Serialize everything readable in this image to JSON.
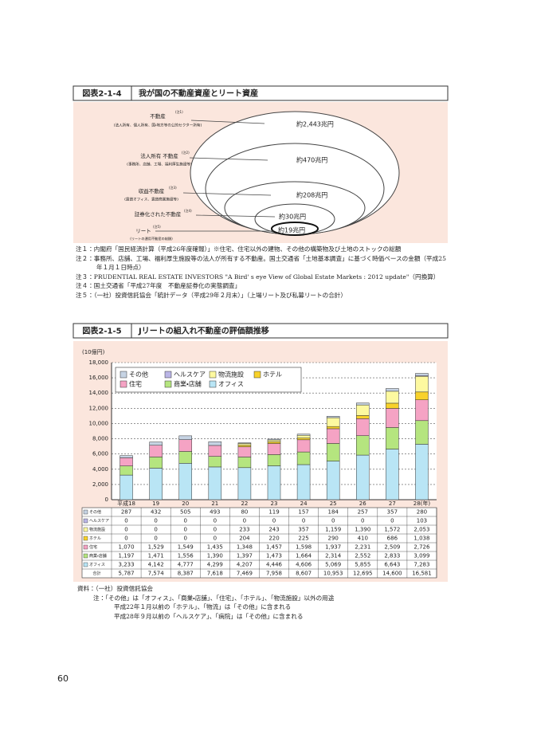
{
  "page_number": "60",
  "figure_1": {
    "label": "図表2-1-4",
    "title": "我が国の不動産資産とリート資産",
    "levels": [
      {
        "name": "不動産",
        "note": "(注1)",
        "description": "(法人所有、個人所有、国・地方等の公的セクター所有)",
        "amount": "約2,443兆円"
      },
      {
        "name": "法人所有 不動産",
        "note": "(注2)",
        "description": "(事務所、店舗、工場、福利厚生施設等)",
        "amount": "約470兆円"
      },
      {
        "name": "収益不動産",
        "note": "(注3)",
        "description": "(賃貸オフィス、賃貸商業施設等)",
        "amount": "約208兆円"
      },
      {
        "name": "証券化された不動産",
        "note": "(注4)",
        "amount": "約30兆円"
      },
      {
        "name": "リート",
        "note": "(注5)",
        "description": "(リートの運用不動産の総額)",
        "amount": "約19兆円"
      }
    ],
    "notes": [
      "注１：内閣府「国民経済計算（平成26年度確報）」※住宅、住宅以外の建物、その他の構築物及び土地のストックの総額",
      "注２：事務所、店舗、工場、福利厚生施設等の法人が所有する不動産。国土交通省「土地基本調査」に基づく時価ベースの金額（平成25年１月１日時点）",
      "注３：PRUDENTIAL REAL ESTATE INVESTORS \"A Bird' s eye View of Global Estate Markets : 2012 update\"（円換算）",
      "注４：国土交通省「平成27年度　不動産証券化の実態調査」",
      "注５：（一社）投資信託協会「統計データ（平成29年２月末）」（上場リート及び私募リートの合計）"
    ]
  },
  "figure_2": {
    "label": "図表2-1-5",
    "title": "Jリートの組入れ不動産の評価額推移",
    "source": "資料：（一社）投資信託協会",
    "notes": [
      "注：「その他」は「オフィス」、「商業・店舗」、「住宅」、「ホテル」、「物流施設」以外の用途",
      "平成22年１月以前の「ホテル」、「物流」は「その他」に含まれる",
      "平成28年９月以前の「ヘルスケア」、「病院」は「その他」に含まれる"
    ]
  },
  "chart_data": {
    "type": "bar",
    "stacked": true,
    "y_unit": "(10億円)",
    "grid": true,
    "categories": [
      "平成18",
      "19",
      "20",
      "21",
      "22",
      "23",
      "24",
      "25",
      "26",
      "27",
      "28(年)"
    ],
    "ylim": [
      0,
      18000
    ],
    "yticks": [
      0,
      {
        "value": 2000,
        "label": "2,000"
      },
      {
        "value": 4000,
        "label": "4,000"
      },
      {
        "value": 6000,
        "label": "6,000"
      },
      {
        "value": 8000,
        "label": "8,000"
      },
      {
        "value": 10000,
        "label": "10,000"
      },
      {
        "value": 12000,
        "label": "12,000"
      },
      {
        "value": 14000,
        "label": "14,000"
      },
      {
        "value": 16000,
        "label": "16,000"
      },
      {
        "value": 18000,
        "label": "18,000"
      }
    ],
    "series": [
      {
        "name": "その他",
        "color": "#c6d3e3",
        "values": [
          287,
          432,
          505,
          493,
          80,
          119,
          157,
          184,
          257,
          357,
          280
        ]
      },
      {
        "name": "ヘルスケア",
        "color": "#bab5e6",
        "values": [
          0,
          0,
          0,
          0,
          0,
          0,
          0,
          0,
          0,
          0,
          103
        ]
      },
      {
        "name": "物流施設",
        "color": "#fdf9a0",
        "values": [
          0,
          0,
          0,
          0,
          233,
          243,
          357,
          1159,
          1390,
          1572,
          2053
        ],
        "value_labels": [
          "0",
          "0",
          "0",
          "0",
          "233",
          "243",
          "357",
          "1,159",
          "1,390",
          "1,572",
          "2,053"
        ]
      },
      {
        "name": "ホテル",
        "color": "#f8d22a",
        "values": [
          0,
          0,
          0,
          0,
          204,
          220,
          225,
          290,
          410,
          686,
          1038
        ],
        "value_labels": [
          "0",
          "0",
          "0",
          "0",
          "204",
          "220",
          "225",
          "290",
          "410",
          "686",
          "1,038"
        ]
      },
      {
        "name": "住宅",
        "color": "#f5a3c4",
        "values": [
          1070,
          1529,
          1549,
          1435,
          1348,
          1457,
          1598,
          1937,
          2231,
          2509,
          2726
        ],
        "value_labels": [
          "1,070",
          "1,529",
          "1,549",
          "1,435",
          "1,348",
          "1,457",
          "1,598",
          "1,937",
          "2,231",
          "2,509",
          "2,726"
        ]
      },
      {
        "name": "商業・店舗",
        "color": "#b5e57f",
        "values": [
          1197,
          1471,
          1556,
          1390,
          1397,
          1473,
          1664,
          2314,
          2552,
          2833,
          3099
        ],
        "value_labels": [
          "1,197",
          "1,471",
          "1,556",
          "1,390",
          "1,397",
          "1,473",
          "1,664",
          "2,314",
          "2,552",
          "2,833",
          "3,099"
        ]
      },
      {
        "name": "オフィス",
        "color": "#b9e5f5",
        "values": [
          3233,
          4142,
          4777,
          4299,
          4207,
          4446,
          4606,
          5069,
          5855,
          6643,
          7283
        ],
        "value_labels": [
          "3,233",
          "4,142",
          "4,777",
          "4,299",
          "4,207",
          "4,446",
          "4,606",
          "5,069",
          "5,855",
          "6,643",
          "7,283"
        ]
      }
    ],
    "total": {
      "name": "合計",
      "cells": [
        "5,787",
        "7,574",
        "8,387",
        "7,618",
        "7,469",
        "7,958",
        "8,607",
        "10,953",
        "12,695",
        "14,600",
        "16,581"
      ]
    }
  }
}
